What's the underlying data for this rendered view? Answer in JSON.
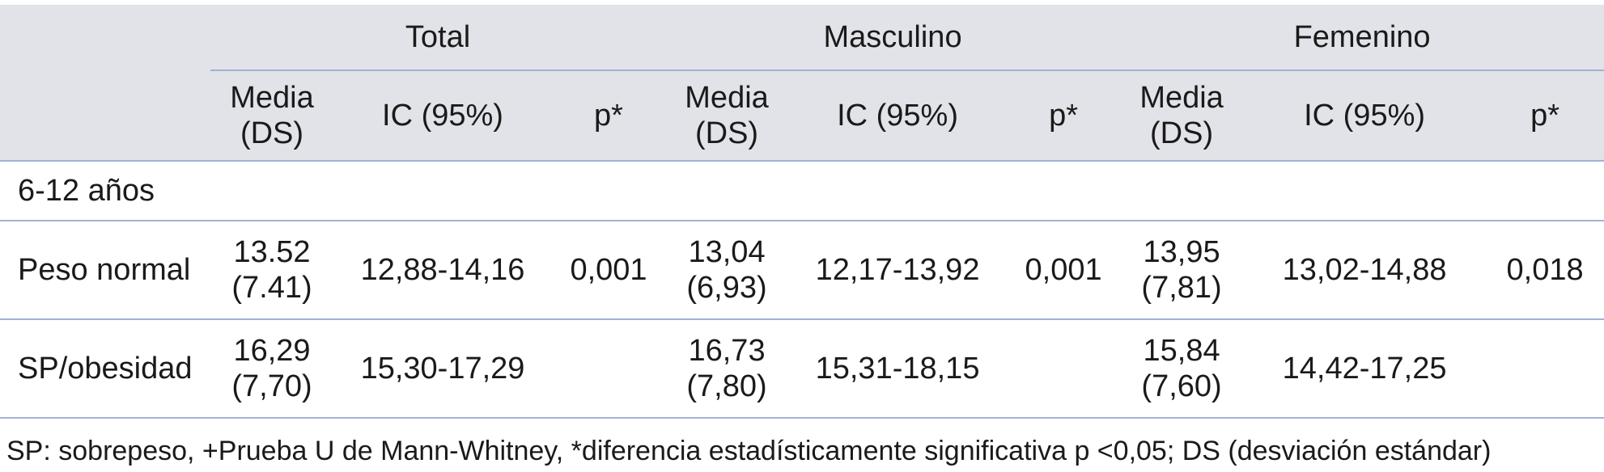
{
  "columns": {
    "groups": [
      "Total",
      "Masculino",
      "Femenino"
    ],
    "media_line1": "Media",
    "media_line2": "(DS)",
    "ic": "IC (95%)",
    "p": "p*"
  },
  "section_label": "6-12 años",
  "rows": [
    {
      "label": "Peso normal",
      "cells": [
        {
          "media": "13.52",
          "ds": "(7.41)",
          "ic": "12,88-14,16",
          "p": "0,001"
        },
        {
          "media": "13,04",
          "ds": "(6,93)",
          "ic": "12,17-13,92",
          "p": "0,001"
        },
        {
          "media": "13,95",
          "ds": "(7,81)",
          "ic": "13,02-14,88",
          "p": "0,018"
        }
      ]
    },
    {
      "label": "SP/obesidad",
      "cells": [
        {
          "media": "16,29",
          "ds": "(7,70)",
          "ic": "15,30-17,29",
          "p": ""
        },
        {
          "media": "16,73",
          "ds": "(7,80)",
          "ic": "15,31-18,15",
          "p": ""
        },
        {
          "media": "15,84",
          "ds": "(7,60)",
          "ic": "14,42-17,25",
          "p": ""
        }
      ]
    }
  ],
  "footnote": "SP: sobrepeso, +Prueba U de Mann-Whitney, *diferencia estadísticamente significativa p <0,05; DS (desviación estándar)"
}
